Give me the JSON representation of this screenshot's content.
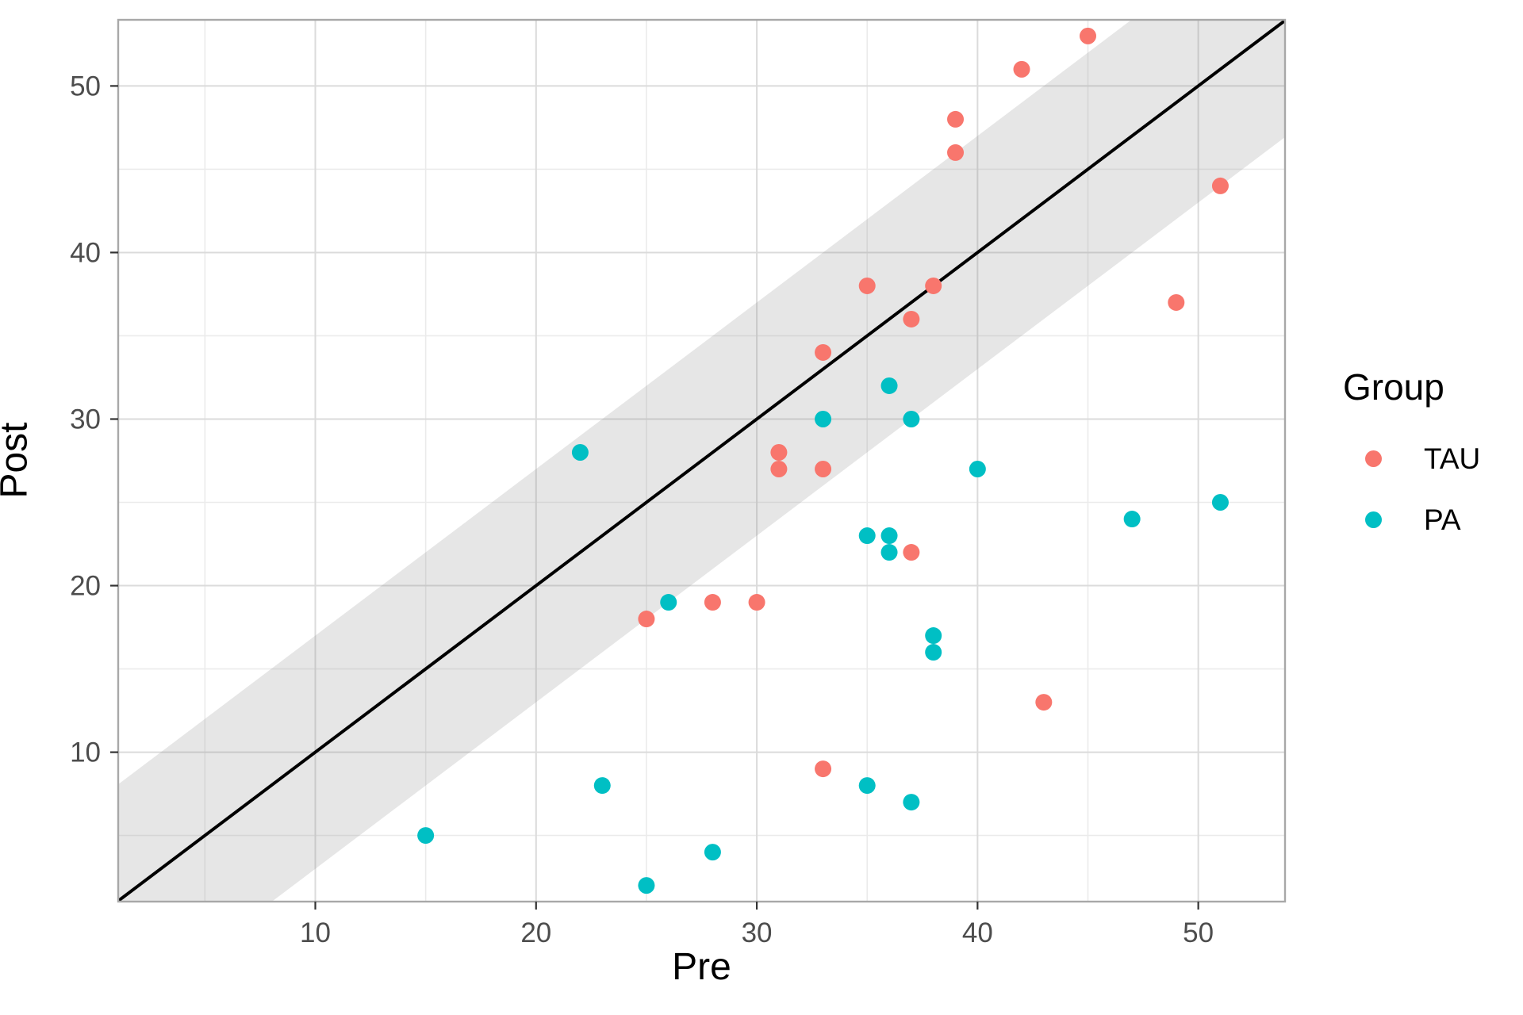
{
  "axes": {
    "x_label": "Pre",
    "y_label": "Post"
  },
  "legend": {
    "title": "Group",
    "items": [
      {
        "label": "TAU",
        "color": "#F8766D"
      },
      {
        "label": "PA",
        "color": "#00BFC4"
      }
    ]
  },
  "theme": {
    "panel_background": "#FFFFFF",
    "grid_major_color": "#DBDBDB",
    "grid_minor_color": "#EBEBEB",
    "panel_border_color": "#A8A8A8",
    "tick_color": "#333333",
    "tick_label_color": "#4D4D4D",
    "band_fill": "#808080",
    "band_opacity": 0.2,
    "identity_line_color": "#000000",
    "tau_color": "#F8766D",
    "pa_color": "#00BFC4"
  },
  "chart_data": {
    "type": "scatter",
    "title": "",
    "xlabel": "Pre",
    "ylabel": "Post",
    "xlim": [
      1.07,
      53.93
    ],
    "ylim": [
      1.03,
      53.97
    ],
    "x_ticks": [
      10,
      20,
      30,
      40,
      50
    ],
    "y_ticks": [
      10,
      20,
      30,
      40,
      50
    ],
    "x_minor_ticks": [
      5,
      15,
      25,
      35,
      45
    ],
    "y_minor_ticks": [
      5,
      15,
      25,
      35,
      45
    ],
    "grid": true,
    "legend_position": "right",
    "identity_line": {
      "slope": 1,
      "intercept": 0
    },
    "band": {
      "center": "y = x",
      "halfwidth": 7
    },
    "series": [
      {
        "name": "TAU",
        "color": "#F8766D",
        "points": [
          [
            25,
            18
          ],
          [
            28,
            19
          ],
          [
            30,
            19
          ],
          [
            31,
            27
          ],
          [
            31,
            28
          ],
          [
            33,
            9
          ],
          [
            33,
            27
          ],
          [
            33,
            34
          ],
          [
            35,
            38
          ],
          [
            37,
            22
          ],
          [
            37,
            36
          ],
          [
            38,
            38
          ],
          [
            39,
            46
          ],
          [
            39,
            48
          ],
          [
            42,
            51
          ],
          [
            43,
            13
          ],
          [
            45,
            53
          ],
          [
            49,
            37
          ],
          [
            51,
            44
          ]
        ]
      },
      {
        "name": "PA",
        "color": "#00BFC4",
        "points": [
          [
            15,
            5
          ],
          [
            22,
            28
          ],
          [
            23,
            8
          ],
          [
            25,
            2
          ],
          [
            26,
            19
          ],
          [
            28,
            4
          ],
          [
            33,
            30
          ],
          [
            35,
            8
          ],
          [
            35,
            23
          ],
          [
            36,
            22
          ],
          [
            36,
            23
          ],
          [
            36,
            32
          ],
          [
            37,
            7
          ],
          [
            37,
            30
          ],
          [
            38,
            16
          ],
          [
            38,
            17
          ],
          [
            40,
            27
          ],
          [
            47,
            24
          ],
          [
            51,
            25
          ]
        ]
      }
    ]
  }
}
